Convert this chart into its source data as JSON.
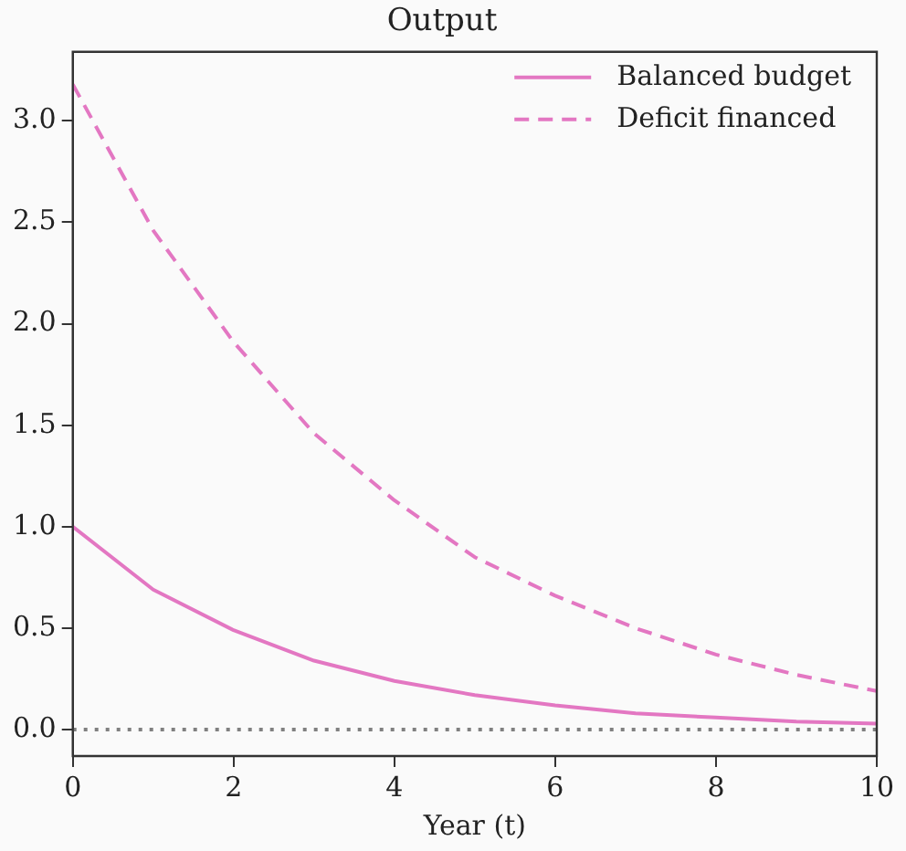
{
  "chart_data": {
    "type": "line",
    "title": "Output",
    "xlabel": "Year (t)",
    "x": [
      0,
      1,
      2,
      3,
      4,
      5,
      6,
      7,
      8,
      9,
      10
    ],
    "series": [
      {
        "name": "Balanced budget",
        "color": "#e377c2",
        "line_style": "solid",
        "values": [
          1.0,
          0.69,
          0.49,
          0.34,
          0.24,
          0.17,
          0.12,
          0.08,
          0.06,
          0.04,
          0.03
        ]
      },
      {
        "name": "Deficit financed",
        "color": "#e377c2",
        "line_style": "dashed",
        "values": [
          3.18,
          2.46,
          1.91,
          1.46,
          1.13,
          0.85,
          0.66,
          0.5,
          0.37,
          0.27,
          0.19
        ]
      }
    ],
    "xlim": [
      0,
      10
    ],
    "xticks": [
      0,
      2,
      4,
      6,
      8,
      10
    ],
    "ylim": [
      -0.13,
      3.34
    ],
    "yticks": [
      {
        "value": 0,
        "label": "0.0"
      },
      {
        "value": 0.5,
        "label": "0.5"
      },
      {
        "value": 1,
        "label": "1.0"
      },
      {
        "value": 1.5,
        "label": "1.5"
      },
      {
        "value": 2,
        "label": "2.0"
      },
      {
        "value": 2.5,
        "label": "2.5"
      },
      {
        "value": 3,
        "label": "3.0"
      }
    ],
    "ref_lines": [
      {
        "axis": "y",
        "value": 0,
        "color": "#808080",
        "line_style": "dotted"
      }
    ],
    "legend": "top right",
    "grid": false,
    "marker": "none"
  }
}
